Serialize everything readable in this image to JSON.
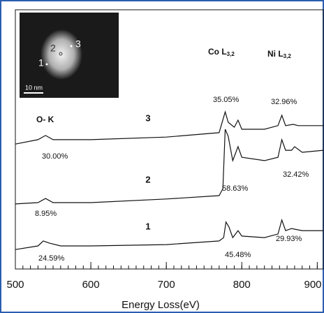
{
  "chart_data": {
    "type": "line",
    "x_label": "Energy Loss(eV)",
    "xlim": [
      500,
      908
    ],
    "xticks": [
      500,
      600,
      700,
      800,
      900
    ],
    "minor_tick_step": 10,
    "ylim": [
      0,
      100
    ],
    "series": [
      {
        "name": "1",
        "color": "#111111",
        "x": [
          500,
          530,
          537,
          545,
          560,
          600,
          700,
          770,
          776,
          779,
          783,
          788,
          795,
          800,
          830,
          848,
          853,
          858,
          866,
          880,
          908
        ],
        "values": [
          7.5,
          8.9,
          10.8,
          10.0,
          8.9,
          8.9,
          9.4,
          10.8,
          12.1,
          18.1,
          16.2,
          12.1,
          14.8,
          12.7,
          12.1,
          13.5,
          18.9,
          14.8,
          15.6,
          14.8,
          14.8
        ]
      },
      {
        "name": "2",
        "color": "#111111",
        "x": [
          500,
          530,
          540,
          550,
          600,
          700,
          770,
          775,
          778,
          782,
          788,
          795,
          800,
          830,
          848,
          853,
          858,
          866,
          870,
          880,
          908
        ],
        "values": [
          25.1,
          25.6,
          27.2,
          25.6,
          25.6,
          27.0,
          28.3,
          31.0,
          53.9,
          51.2,
          41.8,
          47.2,
          43.1,
          41.8,
          43.1,
          49.9,
          45.8,
          45.8,
          47.2,
          45.0,
          45.8
        ]
      },
      {
        "name": "3",
        "color": "#111111",
        "x": [
          500,
          530,
          540,
          550,
          600,
          700,
          770,
          778,
          782,
          790,
          795,
          800,
          830,
          848,
          853,
          858,
          868,
          875,
          908
        ],
        "values": [
          48.2,
          49.9,
          51.5,
          49.9,
          49.9,
          50.9,
          52.6,
          60.6,
          56.6,
          54.7,
          57.4,
          53.9,
          53.9,
          55.3,
          59.3,
          55.3,
          55.8,
          55.3,
          55.3
        ]
      }
    ],
    "edge_labels": [
      {
        "text": "O- K"
      },
      {
        "text": "Co L",
        "sub": "3,2"
      },
      {
        "text": "Ni L",
        "sub": "3,2"
      }
    ],
    "annotations": [
      "35.05%",
      "32.96%",
      "30.00%",
      "58.63%",
      "32.42%",
      "8.95%",
      "29.93%",
      "45.48%",
      "24.59%"
    ],
    "inset": {
      "point_labels": [
        "1",
        "2",
        "3"
      ],
      "scale_bar": "10 nm"
    }
  }
}
